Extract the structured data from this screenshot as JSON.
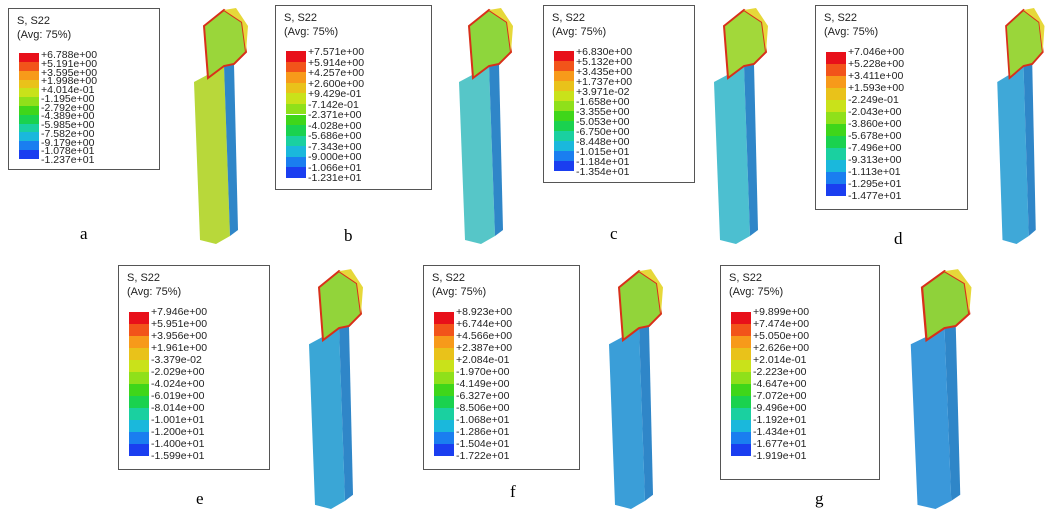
{
  "panels": [
    {
      "label": "a",
      "title": "S, S22",
      "subtitle": "(Avg: 75%)",
      "legend": [
        "+6.788e+00",
        "+5.191e+00",
        "+3.595e+00",
        "+1.998e+00",
        "+4.014e-01",
        "-1.195e+00",
        "-2.792e+00",
        "-4.389e+00",
        "-5.985e+00",
        "-7.582e+00",
        "-9.179e+00",
        "-1.078e+01",
        "-1.237e+01"
      ]
    },
    {
      "label": "b",
      "title": "S, S22",
      "subtitle": "(Avg: 75%)",
      "legend": [
        "+7.571e+00",
        "+5.914e+00",
        "+4.257e+00",
        "+2.600e+00",
        "+9.429e-01",
        "-7.142e-01",
        "-2.371e+00",
        "-4.028e+00",
        "-5.686e+00",
        "-7.343e+00",
        "-9.000e+00",
        "-1.066e+01",
        "-1.231e+01"
      ]
    },
    {
      "label": "c",
      "title": "S, S22",
      "subtitle": "(Avg: 75%)",
      "legend": [
        "+6.830e+00",
        "+5.132e+00",
        "+3.435e+00",
        "+1.737e+00",
        "+3.971e-02",
        "-1.658e+00",
        "-3.355e+00",
        "-5.053e+00",
        "-6.750e+00",
        "-8.448e+00",
        "-1.015e+01",
        "-1.184e+01",
        "-1.354e+01"
      ]
    },
    {
      "label": "d",
      "title": "S, S22",
      "subtitle": "(Avg: 75%)",
      "legend": [
        "+7.046e+00",
        "+5.228e+00",
        "+3.411e+00",
        "+1.593e+00",
        "-2.249e-01",
        "-2.043e+00",
        "-3.860e+00",
        "-5.678e+00",
        "-7.496e+00",
        "-9.313e+00",
        "-1.113e+01",
        "-1.295e+01",
        "-1.477e+01"
      ]
    },
    {
      "label": "e",
      "title": "S, S22",
      "subtitle": "(Avg: 75%)",
      "legend": [
        "+7.946e+00",
        "+5.951e+00",
        "+3.956e+00",
        "+1.961e+00",
        "-3.379e-02",
        "-2.029e+00",
        "-4.024e+00",
        "-6.019e+00",
        "-8.014e+00",
        "-1.001e+01",
        "-1.200e+01",
        "-1.400e+01",
        "-1.599e+01"
      ]
    },
    {
      "label": "f",
      "title": "S, S22",
      "subtitle": "(Avg: 75%)",
      "legend": [
        "+8.923e+00",
        "+6.744e+00",
        "+4.566e+00",
        "+2.387e+00",
        "+2.084e-01",
        "-1.970e+00",
        "-4.149e+00",
        "-6.327e+00",
        "-8.506e+00",
        "-1.068e+01",
        "-1.286e+01",
        "-1.504e+01",
        "-1.722e+01"
      ]
    },
    {
      "label": "g",
      "title": "S, S22",
      "subtitle": "(Avg: 75%)",
      "legend": [
        "+9.899e+00",
        "+7.474e+00",
        "+5.050e+00",
        "+2.626e+00",
        "+2.014e-01",
        "-2.223e+00",
        "-4.647e+00",
        "-7.072e+00",
        "-9.496e+00",
        "-1.192e+01",
        "-1.434e+01",
        "-1.677e+01",
        "-1.919e+01"
      ]
    }
  ]
}
